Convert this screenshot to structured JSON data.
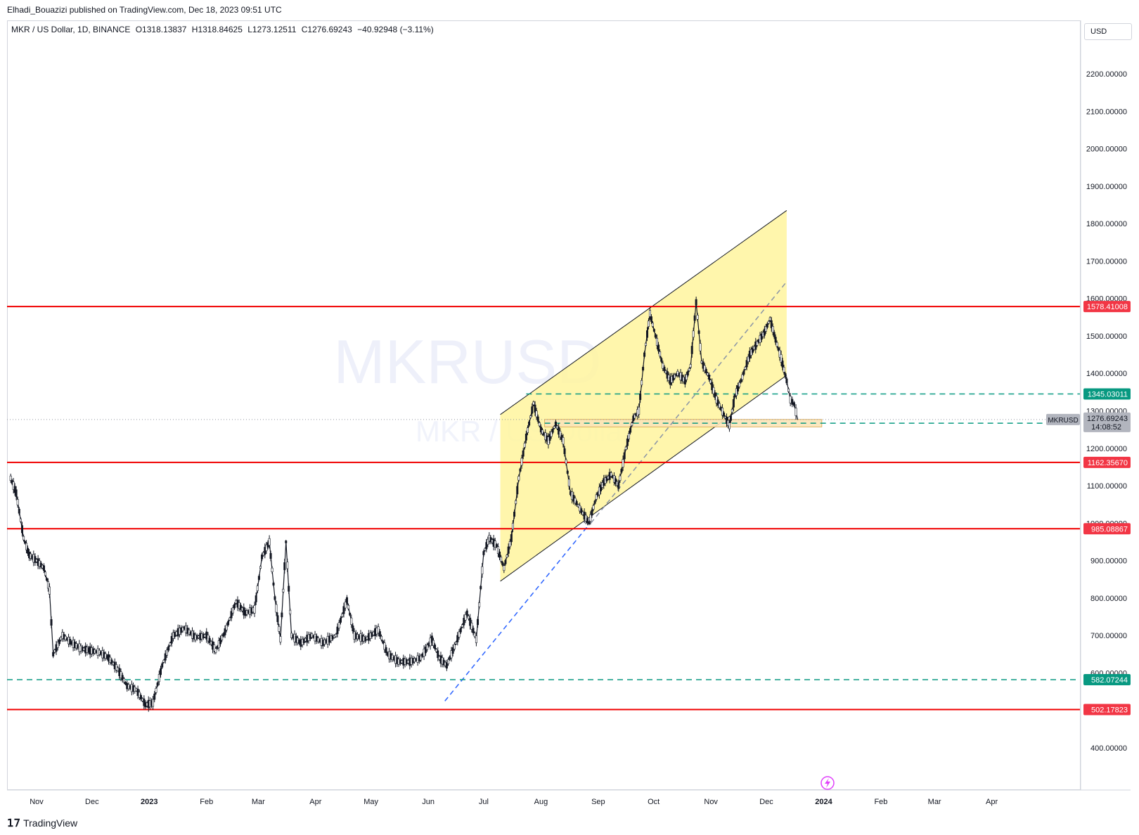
{
  "header": {
    "publish_line": "Elhadi_Bouazizi published on TradingView.com, Dec 18, 2023 09:51 UTC"
  },
  "legend": {
    "symbol_desc": "MKR / US Dollar, 1D, BINANCE",
    "open": "O1318.13837",
    "high": "H1318.84625",
    "low": "L1273.12511",
    "close": "C1276.69243",
    "change": "−40.92948 (−3.11%)"
  },
  "currency_button": "USD",
  "watermark": {
    "symbol": "MKRUSD",
    "subtitle": "MKR / US Dollar"
  },
  "footer": {
    "brand": "TradingView",
    "icon": "tradingview-logo-icon"
  },
  "time_jump_icon": "lightning-icon",
  "chart_data": {
    "type": "candlestick",
    "symbol": "MKRUSD",
    "timeframe": "1D",
    "exchange": "BINANCE",
    "y_scale_labels": [
      "400.00000",
      "500.00000",
      "600.00000",
      "700.00000",
      "800.00000",
      "900.00000",
      "1000.00000",
      "1100.00000",
      "1200.00000",
      "1300.00000",
      "1400.00000",
      "1500.00000",
      "1600.00000",
      "1700.00000",
      "1800.00000",
      "1900.00000",
      "2000.00000",
      "2100.00000",
      "2200.00000"
    ],
    "x_scale_labels": [
      "Nov",
      "Dec",
      "2023",
      "Feb",
      "Mar",
      "Apr",
      "May",
      "Jun",
      "Jul",
      "Aug",
      "Sep",
      "Oct",
      "Nov",
      "Dec",
      "2024",
      "Feb",
      "Mar",
      "Apr"
    ],
    "last_price": {
      "value": 1276.69243,
      "label": "1276.69243",
      "countdown": "14:08:52",
      "tag": "MKRUSD"
    },
    "horizontal_levels": [
      {
        "value": 1578.41008,
        "label": "1578.41008",
        "style": "solid",
        "color": "#f00000"
      },
      {
        "value": 1345.03011,
        "label": "1345.03011",
        "style": "dashed",
        "color": "#089981"
      },
      {
        "value": 1266.85166,
        "label": "1266.85166",
        "style": "dashed",
        "color": "#089981"
      },
      {
        "value": 1162.3567,
        "label": "1162.35670",
        "style": "solid",
        "color": "#f00000"
      },
      {
        "value": 985.08867,
        "label": "985.08867",
        "style": "solid",
        "color": "#f00000"
      },
      {
        "value": 582.07244,
        "label": "582.07244",
        "style": "dashed",
        "color": "#089981"
      },
      {
        "value": 502.17823,
        "label": "502.17823",
        "style": "solid",
        "color": "#f00000"
      }
    ],
    "ascending_channel": {
      "fill": "#fff59d",
      "lower_start": {
        "date": "2023-07-10",
        "price": 845
      },
      "lower_end": {
        "date": "2023-12-12",
        "price": 1395
      },
      "upper_start": {
        "date": "2023-07-10",
        "price": 1290
      },
      "upper_end": {
        "date": "2023-12-12",
        "price": 1835
      }
    },
    "support_zone": {
      "date_start": "2023-08-03",
      "date_end": "2023-12-31",
      "price_low": 1257,
      "price_high": 1277
    },
    "blue_trendline": {
      "from": {
        "date": "2023-06-10",
        "price": 525
      },
      "to": {
        "date": "2023-08-26",
        "price": 990
      }
    },
    "grey_dashed_line": {
      "from": {
        "date": "2023-08-28",
        "price": 1000
      },
      "to": {
        "date": "2023-12-12",
        "price": 1645
      }
    },
    "price_path": [
      [
        "2022-10-18",
        1120
      ],
      [
        "2022-10-21",
        1080
      ],
      [
        "2022-10-25",
        960
      ],
      [
        "2022-10-28",
        915
      ],
      [
        "2022-11-01",
        900
      ],
      [
        "2022-11-05",
        880
      ],
      [
        "2022-11-08",
        820
      ],
      [
        "2022-11-10",
        650
      ],
      [
        "2022-11-15",
        700
      ],
      [
        "2022-11-20",
        680
      ],
      [
        "2022-11-25",
        665
      ],
      [
        "2022-11-30",
        660
      ],
      [
        "2022-12-05",
        655
      ],
      [
        "2022-12-10",
        640
      ],
      [
        "2022-12-15",
        610
      ],
      [
        "2022-12-20",
        565
      ],
      [
        "2022-12-25",
        555
      ],
      [
        "2022-12-30",
        515
      ],
      [
        "2023-01-03",
        520
      ],
      [
        "2023-01-08",
        620
      ],
      [
        "2023-01-14",
        700
      ],
      [
        "2023-01-20",
        720
      ],
      [
        "2023-01-26",
        695
      ],
      [
        "2023-02-01",
        700
      ],
      [
        "2023-02-06",
        660
      ],
      [
        "2023-02-11",
        710
      ],
      [
        "2023-02-17",
        790
      ],
      [
        "2023-02-22",
        760
      ],
      [
        "2023-02-27",
        770
      ],
      [
        "2023-03-03",
        910
      ],
      [
        "2023-03-07",
        950
      ],
      [
        "2023-03-10",
        800
      ],
      [
        "2023-03-13",
        690
      ],
      [
        "2023-03-16",
        950
      ],
      [
        "2023-03-19",
        700
      ],
      [
        "2023-03-24",
        680
      ],
      [
        "2023-03-30",
        700
      ],
      [
        "2023-04-05",
        680
      ],
      [
        "2023-04-12",
        700
      ],
      [
        "2023-04-18",
        795
      ],
      [
        "2023-04-22",
        700
      ],
      [
        "2023-04-28",
        690
      ],
      [
        "2023-05-05",
        715
      ],
      [
        "2023-05-10",
        650
      ],
      [
        "2023-05-16",
        630
      ],
      [
        "2023-05-22",
        630
      ],
      [
        "2023-05-28",
        640
      ],
      [
        "2023-06-03",
        690
      ],
      [
        "2023-06-07",
        640
      ],
      [
        "2023-06-11",
        620
      ],
      [
        "2023-06-16",
        680
      ],
      [
        "2023-06-22",
        760
      ],
      [
        "2023-06-27",
        690
      ],
      [
        "2023-07-01",
        920
      ],
      [
        "2023-07-04",
        960
      ],
      [
        "2023-07-08",
        940
      ],
      [
        "2023-07-12",
        880
      ],
      [
        "2023-07-16",
        960
      ],
      [
        "2023-07-20",
        1120
      ],
      [
        "2023-07-24",
        1230
      ],
      [
        "2023-07-28",
        1320
      ],
      [
        "2023-08-01",
        1250
      ],
      [
        "2023-08-05",
        1220
      ],
      [
        "2023-08-09",
        1265
      ],
      [
        "2023-08-13",
        1220
      ],
      [
        "2023-08-17",
        1080
      ],
      [
        "2023-08-22",
        1040
      ],
      [
        "2023-08-27",
        1000
      ],
      [
        "2023-08-31",
        1070
      ],
      [
        "2023-09-04",
        1110
      ],
      [
        "2023-09-08",
        1130
      ],
      [
        "2023-09-12",
        1100
      ],
      [
        "2023-09-16",
        1200
      ],
      [
        "2023-09-20",
        1280
      ],
      [
        "2023-09-23",
        1300
      ],
      [
        "2023-09-26",
        1450
      ],
      [
        "2023-09-29",
        1560
      ],
      [
        "2023-10-02",
        1500
      ],
      [
        "2023-10-06",
        1420
      ],
      [
        "2023-10-10",
        1380
      ],
      [
        "2023-10-14",
        1400
      ],
      [
        "2023-10-18",
        1380
      ],
      [
        "2023-10-21",
        1420
      ],
      [
        "2023-10-24",
        1590
      ],
      [
        "2023-10-27",
        1430
      ],
      [
        "2023-10-31",
        1390
      ],
      [
        "2023-11-04",
        1330
      ],
      [
        "2023-11-08",
        1290
      ],
      [
        "2023-11-11",
        1260
      ],
      [
        "2023-11-14",
        1340
      ],
      [
        "2023-11-18",
        1390
      ],
      [
        "2023-11-22",
        1450
      ],
      [
        "2023-11-26",
        1480
      ],
      [
        "2023-11-30",
        1510
      ],
      [
        "2023-12-03",
        1545
      ],
      [
        "2023-12-06",
        1490
      ],
      [
        "2023-12-09",
        1440
      ],
      [
        "2023-12-12",
        1380
      ],
      [
        "2023-12-14",
        1330
      ],
      [
        "2023-12-16",
        1318
      ],
      [
        "2023-12-18",
        1276
      ]
    ]
  }
}
